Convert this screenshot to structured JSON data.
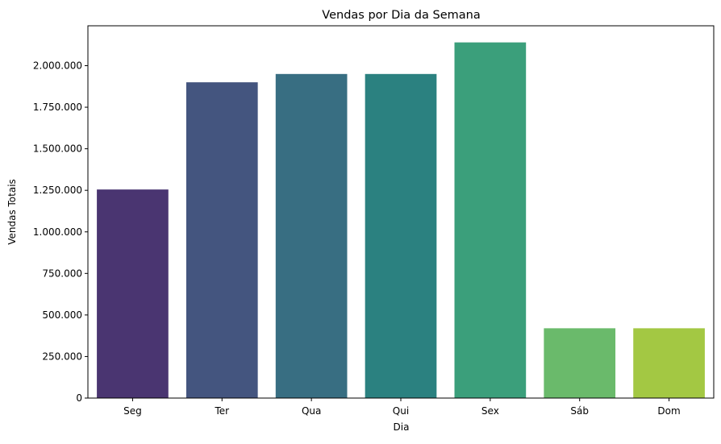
{
  "chart_data": {
    "type": "bar",
    "title": "Vendas por Dia da Semana",
    "xlabel": "Dia",
    "ylabel": "Vendas Totais",
    "categories": [
      "Seg",
      "Ter",
      "Qua",
      "Qui",
      "Sex",
      "Sáb",
      "Dom"
    ],
    "values": [
      1255000,
      1900000,
      1950000,
      1950000,
      2140000,
      420000,
      420000
    ],
    "colors": [
      "#4a3571",
      "#44557f",
      "#386e82",
      "#2b8180",
      "#3b9f7b",
      "#6aba6b",
      "#a3c843"
    ],
    "ylim": [
      0,
      2240000
    ],
    "yticks": [
      0,
      250000,
      500000,
      750000,
      1000000,
      1250000,
      1500000,
      1750000,
      2000000
    ],
    "ytick_labels": [
      "0",
      "250.000",
      "500.000",
      "750.000",
      "1.000.000",
      "1.250.000",
      "1.500.000",
      "1.750.000",
      "2.000.000"
    ],
    "grid": false,
    "legend": "none"
  }
}
